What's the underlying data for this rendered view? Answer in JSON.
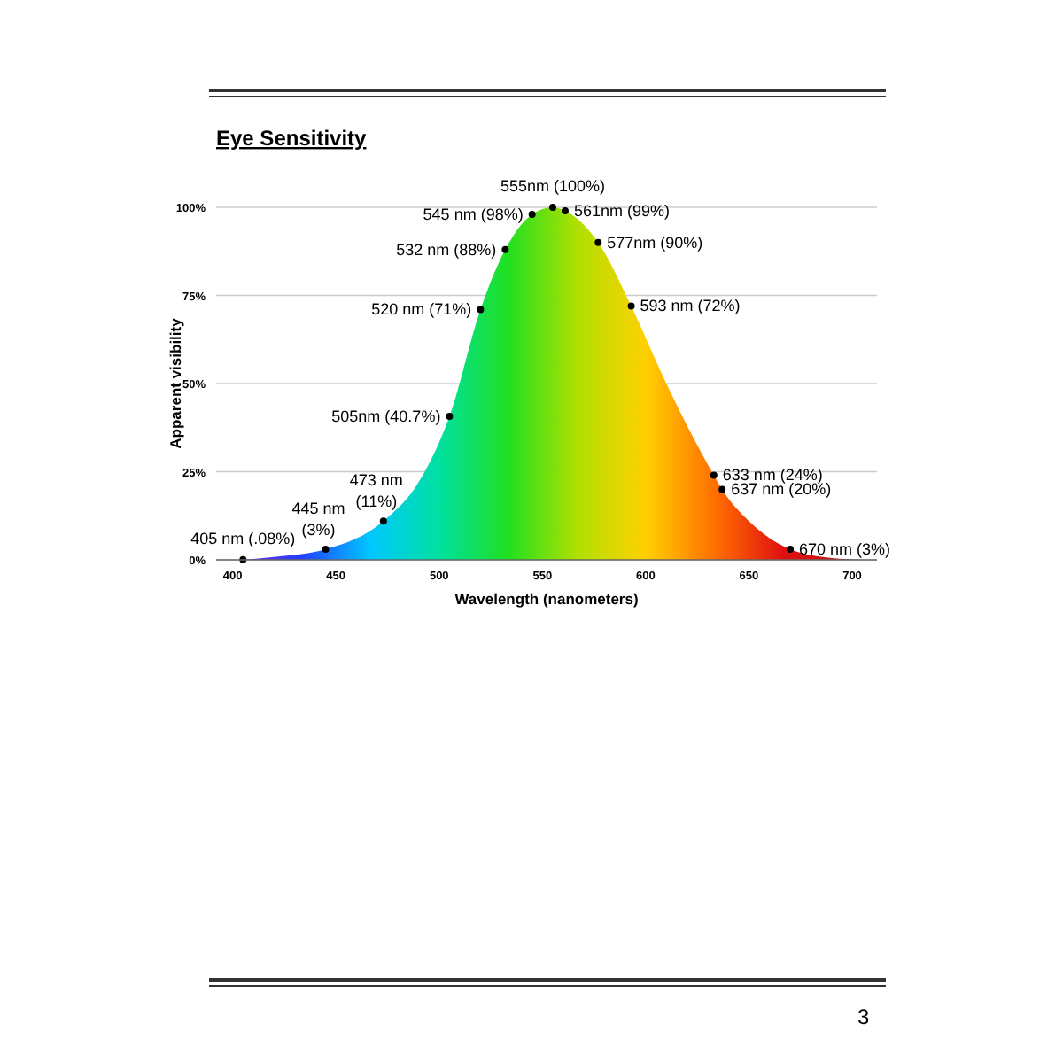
{
  "chart_data": {
    "type": "area",
    "title": "Eye Sensitivity",
    "xlabel": "Wavelength (nanometers)",
    "ylabel": "Apparent visibility",
    "xlim": [
      392,
      712
    ],
    "xticks": [
      400,
      450,
      500,
      550,
      600,
      650,
      700
    ],
    "ylim": [
      0,
      100
    ],
    "yticks": [
      {
        "value": 0,
        "label": "0%"
      },
      {
        "value": 25,
        "label": "25%"
      },
      {
        "value": 50,
        "label": "50%"
      },
      {
        "value": 75,
        "label": "75%"
      },
      {
        "value": 100,
        "label": "100%"
      }
    ],
    "grid": "y",
    "annotations": [
      "3"
    ],
    "series": [
      {
        "color": "#20e020",
        "x": [
          405,
          420,
          445,
          473,
          490,
          505,
          520,
          532,
          545,
          555,
          561,
          577,
          593,
          610,
          633,
          637,
          650,
          670,
          690,
          705
        ],
        "values": [
          0,
          0.8,
          3,
          11,
          22,
          40.7,
          71,
          88,
          98,
          100,
          99,
          90,
          72,
          50,
          24,
          20,
          11,
          3,
          0.5,
          0
        ]
      },
      {
        "type": "scatter",
        "color": "#000000",
        "marker": "circle",
        "x": [
          405,
          445,
          473,
          505,
          520,
          532,
          545,
          555,
          561,
          577,
          593,
          633,
          637,
          670
        ],
        "values": [
          0.08,
          3,
          11,
          40.7,
          71,
          88,
          98,
          100,
          99,
          90,
          72,
          24,
          20,
          3
        ],
        "value_labels": [
          "405 nm (.08%)",
          "445 nm\n(3%)",
          "473 nm\n(11%)",
          "505nm (40.7%)",
          "520 nm (71%)",
          "532 nm (88%)",
          "545 nm (98%)",
          "555nm (100%)",
          "561nm (99%)",
          "577nm (90%)",
          "593 nm (72%)",
          "633 nm (24%)",
          "637 nm (20%)",
          "670 nm (3%)"
        ]
      }
    ]
  }
}
